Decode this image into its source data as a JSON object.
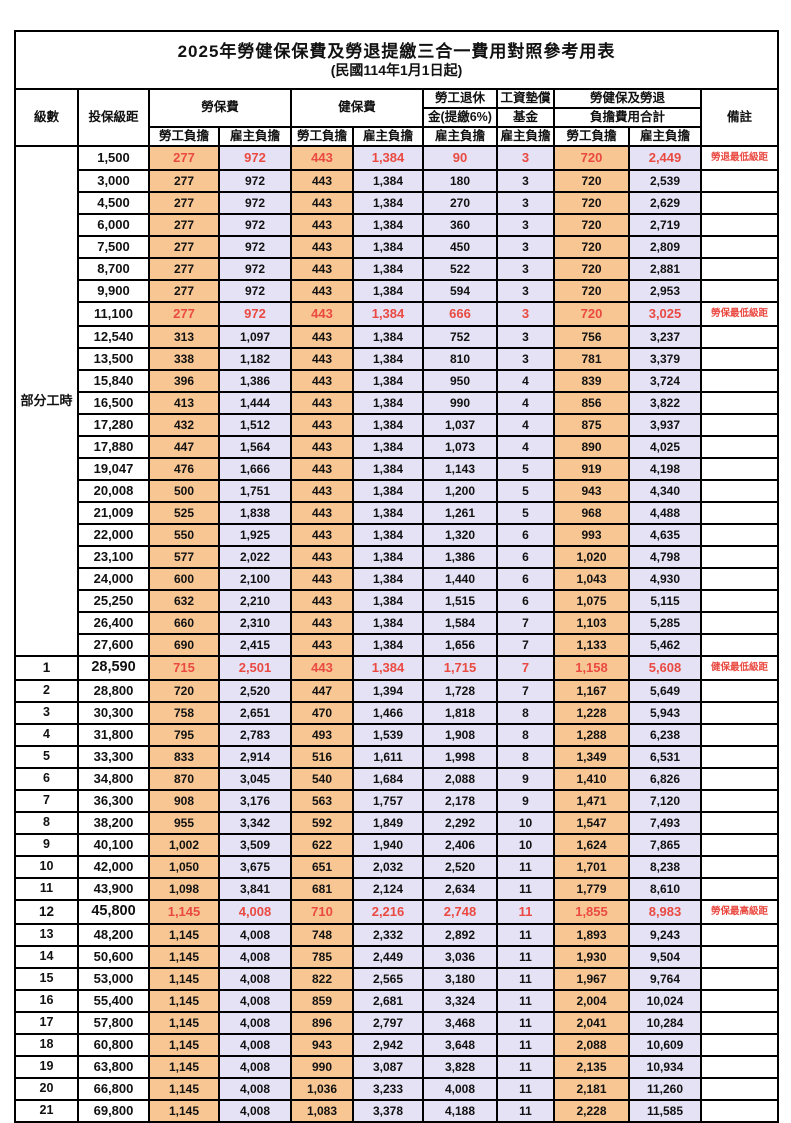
{
  "title": "2025年勞健保保費及勞退提繳三合一費用對照參考用表",
  "subtitle": "(民國114年1月1日起)",
  "colors": {
    "employee_fill": "#F7C693",
    "employer_fill": "#E4E2F4",
    "highlight_text": "#EA4A42",
    "border": "#000000"
  },
  "header": {
    "level": "級數",
    "bracket": "投保級距",
    "labor_insurance": "勞保費",
    "health_insurance": "健保費",
    "pension_line1": "勞工退休",
    "pension_line2": "金(提繳6%)",
    "wage_fund_line1": "工資墊償",
    "wage_fund_line2": "基金",
    "total_line1": "勞健保及勞退",
    "total_line2": "負擔費用合計",
    "note": "備註",
    "employee": "勞工負擔",
    "employer": "雇主負擔"
  },
  "part_time_label": "部分工時",
  "rows": [
    {
      "level": "",
      "bracket": "1,500",
      "li_emp": "277",
      "li_er": "972",
      "hi_emp": "443",
      "hi_er": "1,384",
      "pension": "90",
      "wage": "3",
      "sum_emp": "720",
      "sum_er": "2,449",
      "note": "勞退最低級距",
      "highlight": true,
      "bold_bracket": false
    },
    {
      "level": "",
      "bracket": "3,000",
      "li_emp": "277",
      "li_er": "972",
      "hi_emp": "443",
      "hi_er": "1,384",
      "pension": "180",
      "wage": "3",
      "sum_emp": "720",
      "sum_er": "2,539",
      "note": "",
      "highlight": false,
      "bold_bracket": false
    },
    {
      "level": "",
      "bracket": "4,500",
      "li_emp": "277",
      "li_er": "972",
      "hi_emp": "443",
      "hi_er": "1,384",
      "pension": "270",
      "wage": "3",
      "sum_emp": "720",
      "sum_er": "2,629",
      "note": "",
      "highlight": false,
      "bold_bracket": false
    },
    {
      "level": "",
      "bracket": "6,000",
      "li_emp": "277",
      "li_er": "972",
      "hi_emp": "443",
      "hi_er": "1,384",
      "pension": "360",
      "wage": "3",
      "sum_emp": "720",
      "sum_er": "2,719",
      "note": "",
      "highlight": false,
      "bold_bracket": false
    },
    {
      "level": "",
      "bracket": "7,500",
      "li_emp": "277",
      "li_er": "972",
      "hi_emp": "443",
      "hi_er": "1,384",
      "pension": "450",
      "wage": "3",
      "sum_emp": "720",
      "sum_er": "2,809",
      "note": "",
      "highlight": false,
      "bold_bracket": false
    },
    {
      "level": "",
      "bracket": "8,700",
      "li_emp": "277",
      "li_er": "972",
      "hi_emp": "443",
      "hi_er": "1,384",
      "pension": "522",
      "wage": "3",
      "sum_emp": "720",
      "sum_er": "2,881",
      "note": "",
      "highlight": false,
      "bold_bracket": false
    },
    {
      "level": "",
      "bracket": "9,900",
      "li_emp": "277",
      "li_er": "972",
      "hi_emp": "443",
      "hi_er": "1,384",
      "pension": "594",
      "wage": "3",
      "sum_emp": "720",
      "sum_er": "2,953",
      "note": "",
      "highlight": false,
      "bold_bracket": false
    },
    {
      "level": "",
      "bracket": "11,100",
      "li_emp": "277",
      "li_er": "972",
      "hi_emp": "443",
      "hi_er": "1,384",
      "pension": "666",
      "wage": "3",
      "sum_emp": "720",
      "sum_er": "3,025",
      "note": "勞保最低級距",
      "highlight": true,
      "bold_bracket": false
    },
    {
      "level": "",
      "bracket": "12,540",
      "li_emp": "313",
      "li_er": "1,097",
      "hi_emp": "443",
      "hi_er": "1,384",
      "pension": "752",
      "wage": "3",
      "sum_emp": "756",
      "sum_er": "3,237",
      "note": "",
      "highlight": false,
      "bold_bracket": false
    },
    {
      "level": "",
      "bracket": "13,500",
      "li_emp": "338",
      "li_er": "1,182",
      "hi_emp": "443",
      "hi_er": "1,384",
      "pension": "810",
      "wage": "3",
      "sum_emp": "781",
      "sum_er": "3,379",
      "note": "",
      "highlight": false,
      "bold_bracket": false
    },
    {
      "level": "",
      "bracket": "15,840",
      "li_emp": "396",
      "li_er": "1,386",
      "hi_emp": "443",
      "hi_er": "1,384",
      "pension": "950",
      "wage": "4",
      "sum_emp": "839",
      "sum_er": "3,724",
      "note": "",
      "highlight": false,
      "bold_bracket": false
    },
    {
      "level": "",
      "bracket": "16,500",
      "li_emp": "413",
      "li_er": "1,444",
      "hi_emp": "443",
      "hi_er": "1,384",
      "pension": "990",
      "wage": "4",
      "sum_emp": "856",
      "sum_er": "3,822",
      "note": "",
      "highlight": false,
      "bold_bracket": false
    },
    {
      "level": "",
      "bracket": "17,280",
      "li_emp": "432",
      "li_er": "1,512",
      "hi_emp": "443",
      "hi_er": "1,384",
      "pension": "1,037",
      "wage": "4",
      "sum_emp": "875",
      "sum_er": "3,937",
      "note": "",
      "highlight": false,
      "bold_bracket": false
    },
    {
      "level": "",
      "bracket": "17,880",
      "li_emp": "447",
      "li_er": "1,564",
      "hi_emp": "443",
      "hi_er": "1,384",
      "pension": "1,073",
      "wage": "4",
      "sum_emp": "890",
      "sum_er": "4,025",
      "note": "",
      "highlight": false,
      "bold_bracket": false
    },
    {
      "level": "",
      "bracket": "19,047",
      "li_emp": "476",
      "li_er": "1,666",
      "hi_emp": "443",
      "hi_er": "1,384",
      "pension": "1,143",
      "wage": "5",
      "sum_emp": "919",
      "sum_er": "4,198",
      "note": "",
      "highlight": false,
      "bold_bracket": false
    },
    {
      "level": "",
      "bracket": "20,008",
      "li_emp": "500",
      "li_er": "1,751",
      "hi_emp": "443",
      "hi_er": "1,384",
      "pension": "1,200",
      "wage": "5",
      "sum_emp": "943",
      "sum_er": "4,340",
      "note": "",
      "highlight": false,
      "bold_bracket": false
    },
    {
      "level": "",
      "bracket": "21,009",
      "li_emp": "525",
      "li_er": "1,838",
      "hi_emp": "443",
      "hi_er": "1,384",
      "pension": "1,261",
      "wage": "5",
      "sum_emp": "968",
      "sum_er": "4,488",
      "note": "",
      "highlight": false,
      "bold_bracket": false
    },
    {
      "level": "",
      "bracket": "22,000",
      "li_emp": "550",
      "li_er": "1,925",
      "hi_emp": "443",
      "hi_er": "1,384",
      "pension": "1,320",
      "wage": "6",
      "sum_emp": "993",
      "sum_er": "4,635",
      "note": "",
      "highlight": false,
      "bold_bracket": false
    },
    {
      "level": "",
      "bracket": "23,100",
      "li_emp": "577",
      "li_er": "2,022",
      "hi_emp": "443",
      "hi_er": "1,384",
      "pension": "1,386",
      "wage": "6",
      "sum_emp": "1,020",
      "sum_er": "4,798",
      "note": "",
      "highlight": false,
      "bold_bracket": false
    },
    {
      "level": "",
      "bracket": "24,000",
      "li_emp": "600",
      "li_er": "2,100",
      "hi_emp": "443",
      "hi_er": "1,384",
      "pension": "1,440",
      "wage": "6",
      "sum_emp": "1,043",
      "sum_er": "4,930",
      "note": "",
      "highlight": false,
      "bold_bracket": false
    },
    {
      "level": "",
      "bracket": "25,250",
      "li_emp": "632",
      "li_er": "2,210",
      "hi_emp": "443",
      "hi_er": "1,384",
      "pension": "1,515",
      "wage": "6",
      "sum_emp": "1,075",
      "sum_er": "5,115",
      "note": "",
      "highlight": false,
      "bold_bracket": false
    },
    {
      "level": "",
      "bracket": "26,400",
      "li_emp": "660",
      "li_er": "2,310",
      "hi_emp": "443",
      "hi_er": "1,384",
      "pension": "1,584",
      "wage": "7",
      "sum_emp": "1,103",
      "sum_er": "5,285",
      "note": "",
      "highlight": false,
      "bold_bracket": false
    },
    {
      "level": "",
      "bracket": "27,600",
      "li_emp": "690",
      "li_er": "2,415",
      "hi_emp": "443",
      "hi_er": "1,384",
      "pension": "1,656",
      "wage": "7",
      "sum_emp": "1,133",
      "sum_er": "5,462",
      "note": "",
      "highlight": false,
      "bold_bracket": false
    },
    {
      "level": "1",
      "bracket": "28,590",
      "li_emp": "715",
      "li_er": "2,501",
      "hi_emp": "443",
      "hi_er": "1,384",
      "pension": "1,715",
      "wage": "7",
      "sum_emp": "1,158",
      "sum_er": "5,608",
      "note": "健保最低級距",
      "highlight": true,
      "bold_bracket": true
    },
    {
      "level": "2",
      "bracket": "28,800",
      "li_emp": "720",
      "li_er": "2,520",
      "hi_emp": "447",
      "hi_er": "1,394",
      "pension": "1,728",
      "wage": "7",
      "sum_emp": "1,167",
      "sum_er": "5,649",
      "note": "",
      "highlight": false,
      "bold_bracket": false
    },
    {
      "level": "3",
      "bracket": "30,300",
      "li_emp": "758",
      "li_er": "2,651",
      "hi_emp": "470",
      "hi_er": "1,466",
      "pension": "1,818",
      "wage": "8",
      "sum_emp": "1,228",
      "sum_er": "5,943",
      "note": "",
      "highlight": false,
      "bold_bracket": false
    },
    {
      "level": "4",
      "bracket": "31,800",
      "li_emp": "795",
      "li_er": "2,783",
      "hi_emp": "493",
      "hi_er": "1,539",
      "pension": "1,908",
      "wage": "8",
      "sum_emp": "1,288",
      "sum_er": "6,238",
      "note": "",
      "highlight": false,
      "bold_bracket": false
    },
    {
      "level": "5",
      "bracket": "33,300",
      "li_emp": "833",
      "li_er": "2,914",
      "hi_emp": "516",
      "hi_er": "1,611",
      "pension": "1,998",
      "wage": "8",
      "sum_emp": "1,349",
      "sum_er": "6,531",
      "note": "",
      "highlight": false,
      "bold_bracket": false
    },
    {
      "level": "6",
      "bracket": "34,800",
      "li_emp": "870",
      "li_er": "3,045",
      "hi_emp": "540",
      "hi_er": "1,684",
      "pension": "2,088",
      "wage": "9",
      "sum_emp": "1,410",
      "sum_er": "6,826",
      "note": "",
      "highlight": false,
      "bold_bracket": false
    },
    {
      "level": "7",
      "bracket": "36,300",
      "li_emp": "908",
      "li_er": "3,176",
      "hi_emp": "563",
      "hi_er": "1,757",
      "pension": "2,178",
      "wage": "9",
      "sum_emp": "1,471",
      "sum_er": "7,120",
      "note": "",
      "highlight": false,
      "bold_bracket": false
    },
    {
      "level": "8",
      "bracket": "38,200",
      "li_emp": "955",
      "li_er": "3,342",
      "hi_emp": "592",
      "hi_er": "1,849",
      "pension": "2,292",
      "wage": "10",
      "sum_emp": "1,547",
      "sum_er": "7,493",
      "note": "",
      "highlight": false,
      "bold_bracket": false
    },
    {
      "level": "9",
      "bracket": "40,100",
      "li_emp": "1,002",
      "li_er": "3,509",
      "hi_emp": "622",
      "hi_er": "1,940",
      "pension": "2,406",
      "wage": "10",
      "sum_emp": "1,624",
      "sum_er": "7,865",
      "note": "",
      "highlight": false,
      "bold_bracket": false
    },
    {
      "level": "10",
      "bracket": "42,000",
      "li_emp": "1,050",
      "li_er": "3,675",
      "hi_emp": "651",
      "hi_er": "2,032",
      "pension": "2,520",
      "wage": "11",
      "sum_emp": "1,701",
      "sum_er": "8,238",
      "note": "",
      "highlight": false,
      "bold_bracket": false
    },
    {
      "level": "11",
      "bracket": "43,900",
      "li_emp": "1,098",
      "li_er": "3,841",
      "hi_emp": "681",
      "hi_er": "2,124",
      "pension": "2,634",
      "wage": "11",
      "sum_emp": "1,779",
      "sum_er": "8,610",
      "note": "",
      "highlight": false,
      "bold_bracket": false
    },
    {
      "level": "12",
      "bracket": "45,800",
      "li_emp": "1,145",
      "li_er": "4,008",
      "hi_emp": "710",
      "hi_er": "2,216",
      "pension": "2,748",
      "wage": "11",
      "sum_emp": "1,855",
      "sum_er": "8,983",
      "note": "勞保最高級距",
      "highlight": true,
      "bold_bracket": true
    },
    {
      "level": "13",
      "bracket": "48,200",
      "li_emp": "1,145",
      "li_er": "4,008",
      "hi_emp": "748",
      "hi_er": "2,332",
      "pension": "2,892",
      "wage": "11",
      "sum_emp": "1,893",
      "sum_er": "9,243",
      "note": "",
      "highlight": false,
      "bold_bracket": false
    },
    {
      "level": "14",
      "bracket": "50,600",
      "li_emp": "1,145",
      "li_er": "4,008",
      "hi_emp": "785",
      "hi_er": "2,449",
      "pension": "3,036",
      "wage": "11",
      "sum_emp": "1,930",
      "sum_er": "9,504",
      "note": "",
      "highlight": false,
      "bold_bracket": false
    },
    {
      "level": "15",
      "bracket": "53,000",
      "li_emp": "1,145",
      "li_er": "4,008",
      "hi_emp": "822",
      "hi_er": "2,565",
      "pension": "3,180",
      "wage": "11",
      "sum_emp": "1,967",
      "sum_er": "9,764",
      "note": "",
      "highlight": false,
      "bold_bracket": false
    },
    {
      "level": "16",
      "bracket": "55,400",
      "li_emp": "1,145",
      "li_er": "4,008",
      "hi_emp": "859",
      "hi_er": "2,681",
      "pension": "3,324",
      "wage": "11",
      "sum_emp": "2,004",
      "sum_er": "10,024",
      "note": "",
      "highlight": false,
      "bold_bracket": false
    },
    {
      "level": "17",
      "bracket": "57,800",
      "li_emp": "1,145",
      "li_er": "4,008",
      "hi_emp": "896",
      "hi_er": "2,797",
      "pension": "3,468",
      "wage": "11",
      "sum_emp": "2,041",
      "sum_er": "10,284",
      "note": "",
      "highlight": false,
      "bold_bracket": false
    },
    {
      "level": "18",
      "bracket": "60,800",
      "li_emp": "1,145",
      "li_er": "4,008",
      "hi_emp": "943",
      "hi_er": "2,942",
      "pension": "3,648",
      "wage": "11",
      "sum_emp": "2,088",
      "sum_er": "10,609",
      "note": "",
      "highlight": false,
      "bold_bracket": false
    },
    {
      "level": "19",
      "bracket": "63,800",
      "li_emp": "1,145",
      "li_er": "4,008",
      "hi_emp": "990",
      "hi_er": "3,087",
      "pension": "3,828",
      "wage": "11",
      "sum_emp": "2,135",
      "sum_er": "10,934",
      "note": "",
      "highlight": false,
      "bold_bracket": false
    },
    {
      "level": "20",
      "bracket": "66,800",
      "li_emp": "1,145",
      "li_er": "4,008",
      "hi_emp": "1,036",
      "hi_er": "3,233",
      "pension": "4,008",
      "wage": "11",
      "sum_emp": "2,181",
      "sum_er": "11,260",
      "note": "",
      "highlight": false,
      "bold_bracket": false
    },
    {
      "level": "21",
      "bracket": "69,800",
      "li_emp": "1,145",
      "li_er": "4,008",
      "hi_emp": "1,083",
      "hi_er": "3,378",
      "pension": "4,188",
      "wage": "11",
      "sum_emp": "2,228",
      "sum_er": "11,585",
      "note": "",
      "highlight": false,
      "bold_bracket": false
    }
  ]
}
